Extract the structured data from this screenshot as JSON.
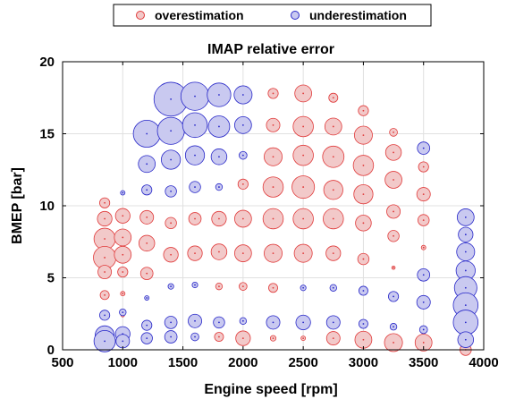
{
  "chart_data": {
    "type": "scatter",
    "title": "IMAP relative error",
    "xlabel": "Engine speed [rpm]",
    "ylabel": "BMEP [bar]",
    "xlim": [
      500,
      4000
    ],
    "ylim": [
      0,
      20
    ],
    "xticks": [
      "500",
      "1000",
      "1500",
      "2000",
      "2500",
      "3000",
      "3500",
      "4000"
    ],
    "yticks": [
      "0",
      "5",
      "10",
      "15",
      "20"
    ],
    "grid": true,
    "legend_position": "top-center",
    "legend_orientation": "horizontal",
    "colors": {
      "over_fill": "#f2c9c9",
      "over_stroke": "#e03a3a",
      "under_fill": "#c9c9f0",
      "under_stroke": "#2828c8",
      "grid": "#e0e0e0",
      "axis": "#000000"
    },
    "size_note_unit": "relative marker size",
    "series": [
      {
        "name": "overestimation",
        "kind": "over",
        "points": [
          [
            850,
            10.2,
            0.9
          ],
          [
            850,
            9.1,
            1.3
          ],
          [
            850,
            7.7,
            1.9
          ],
          [
            850,
            6.4,
            2.0
          ],
          [
            850,
            5.4,
            1.2
          ],
          [
            850,
            3.8,
            0.8
          ],
          [
            1000,
            9.3,
            1.3
          ],
          [
            1000,
            7.8,
            1.5
          ],
          [
            1000,
            6.6,
            1.5
          ],
          [
            1000,
            5.4,
            0.9
          ],
          [
            1000,
            3.9,
            0.4
          ],
          [
            1000,
            2.4,
            0.3
          ],
          [
            1200,
            9.2,
            1.2
          ],
          [
            1200,
            7.4,
            1.4
          ],
          [
            1200,
            5.3,
            1.1
          ],
          [
            1400,
            8.8,
            1.0
          ],
          [
            1400,
            6.6,
            1.3
          ],
          [
            1600,
            9.1,
            1.1
          ],
          [
            1600,
            6.7,
            1.3
          ],
          [
            1800,
            9.1,
            1.3
          ],
          [
            1800,
            6.8,
            1.4
          ],
          [
            1800,
            4.4,
            0.6
          ],
          [
            1800,
            0.9,
            0.8
          ],
          [
            2000,
            11.5,
            0.9
          ],
          [
            2000,
            9.1,
            1.5
          ],
          [
            2000,
            6.7,
            1.5
          ],
          [
            2000,
            4.4,
            0.7
          ],
          [
            2000,
            0.8,
            1.3
          ],
          [
            2250,
            17.8,
            0.9
          ],
          [
            2250,
            15.6,
            1.2
          ],
          [
            2250,
            13.4,
            1.6
          ],
          [
            2250,
            11.3,
            1.8
          ],
          [
            2250,
            9.1,
            1.8
          ],
          [
            2250,
            6.7,
            1.6
          ],
          [
            2250,
            4.3,
            0.8
          ],
          [
            2250,
            0.8,
            0.5
          ],
          [
            2500,
            17.8,
            1.5
          ],
          [
            2500,
            15.5,
            1.8
          ],
          [
            2500,
            13.5,
            1.8
          ],
          [
            2500,
            11.3,
            2.0
          ],
          [
            2500,
            9.1,
            1.8
          ],
          [
            2500,
            6.7,
            1.6
          ],
          [
            2500,
            0.8,
            0.4
          ],
          [
            2750,
            17.5,
            0.8
          ],
          [
            2750,
            15.5,
            1.5
          ],
          [
            2750,
            13.4,
            1.9
          ],
          [
            2750,
            11.1,
            1.7
          ],
          [
            2750,
            9.1,
            1.8
          ],
          [
            2750,
            6.7,
            1.3
          ],
          [
            2750,
            0.8,
            1.2
          ],
          [
            3000,
            16.6,
            0.9
          ],
          [
            3000,
            14.9,
            1.6
          ],
          [
            3000,
            12.8,
            1.8
          ],
          [
            3000,
            10.8,
            1.7
          ],
          [
            3000,
            8.8,
            1.4
          ],
          [
            3000,
            6.3,
            1.0
          ],
          [
            3000,
            0.7,
            1.5
          ],
          [
            3250,
            15.1,
            0.7
          ],
          [
            3250,
            13.7,
            1.4
          ],
          [
            3250,
            11.8,
            1.5
          ],
          [
            3250,
            9.6,
            1.2
          ],
          [
            3250,
            7.9,
            1.0
          ],
          [
            3250,
            5.7,
            0.3
          ],
          [
            3250,
            0.5,
            1.6
          ],
          [
            3500,
            12.7,
            0.9
          ],
          [
            3500,
            10.8,
            1.2
          ],
          [
            3500,
            9.0,
            1.0
          ],
          [
            3500,
            7.1,
            0.4
          ],
          [
            3500,
            0.5,
            1.5
          ],
          [
            3850,
            0.0,
            1.0
          ]
        ]
      },
      {
        "name": "underestimation",
        "kind": "under",
        "points": [
          [
            850,
            2.4,
            0.9
          ],
          [
            850,
            1.0,
            1.7
          ],
          [
            850,
            0.6,
            1.9
          ],
          [
            1000,
            10.9,
            0.4
          ],
          [
            1000,
            2.6,
            0.6
          ],
          [
            1000,
            1.1,
            1.3
          ],
          [
            1000,
            0.6,
            1.2
          ],
          [
            1200,
            15.0,
            2.4
          ],
          [
            1200,
            12.9,
            1.5
          ],
          [
            1200,
            11.1,
            0.9
          ],
          [
            1200,
            3.6,
            0.4
          ],
          [
            1200,
            1.7,
            0.9
          ],
          [
            1200,
            0.8,
            1.0
          ],
          [
            1400,
            17.4,
            3.0
          ],
          [
            1400,
            15.2,
            2.4
          ],
          [
            1400,
            13.2,
            1.7
          ],
          [
            1400,
            11.0,
            1.0
          ],
          [
            1400,
            4.4,
            0.5
          ],
          [
            1400,
            1.9,
            1.1
          ],
          [
            1400,
            0.9,
            1.1
          ],
          [
            1600,
            17.6,
            2.5
          ],
          [
            1600,
            15.6,
            2.2
          ],
          [
            1600,
            13.5,
            1.7
          ],
          [
            1600,
            11.3,
            1.0
          ],
          [
            1600,
            4.5,
            0.5
          ],
          [
            1600,
            2.0,
            1.2
          ],
          [
            1600,
            0.9,
            0.7
          ],
          [
            1800,
            17.7,
            2.1
          ],
          [
            1800,
            15.5,
            1.9
          ],
          [
            1800,
            13.4,
            1.4
          ],
          [
            1800,
            11.3,
            0.6
          ],
          [
            1800,
            1.9,
            1.0
          ],
          [
            2000,
            17.7,
            1.6
          ],
          [
            2000,
            15.6,
            1.5
          ],
          [
            2000,
            13.5,
            0.7
          ],
          [
            2000,
            2.0,
            0.6
          ],
          [
            2250,
            1.9,
            1.2
          ],
          [
            2500,
            4.3,
            0.5
          ],
          [
            2500,
            1.9,
            1.3
          ],
          [
            2750,
            4.3,
            0.6
          ],
          [
            2750,
            1.9,
            1.2
          ],
          [
            3000,
            4.1,
            0.8
          ],
          [
            3000,
            1.8,
            0.8
          ],
          [
            3250,
            3.7,
            0.9
          ],
          [
            3250,
            1.6,
            0.6
          ],
          [
            3500,
            14.0,
            1.1
          ],
          [
            3500,
            5.2,
            1.1
          ],
          [
            3500,
            3.3,
            1.2
          ],
          [
            3500,
            1.4,
            0.7
          ],
          [
            3850,
            9.2,
            1.5
          ],
          [
            3850,
            8.0,
            1.3
          ],
          [
            3850,
            6.8,
            1.6
          ],
          [
            3850,
            5.5,
            1.7
          ],
          [
            3850,
            4.3,
            2.0
          ],
          [
            3850,
            3.1,
            2.2
          ],
          [
            3850,
            1.9,
            2.2
          ],
          [
            3850,
            0.7,
            1.4
          ]
        ]
      }
    ]
  }
}
